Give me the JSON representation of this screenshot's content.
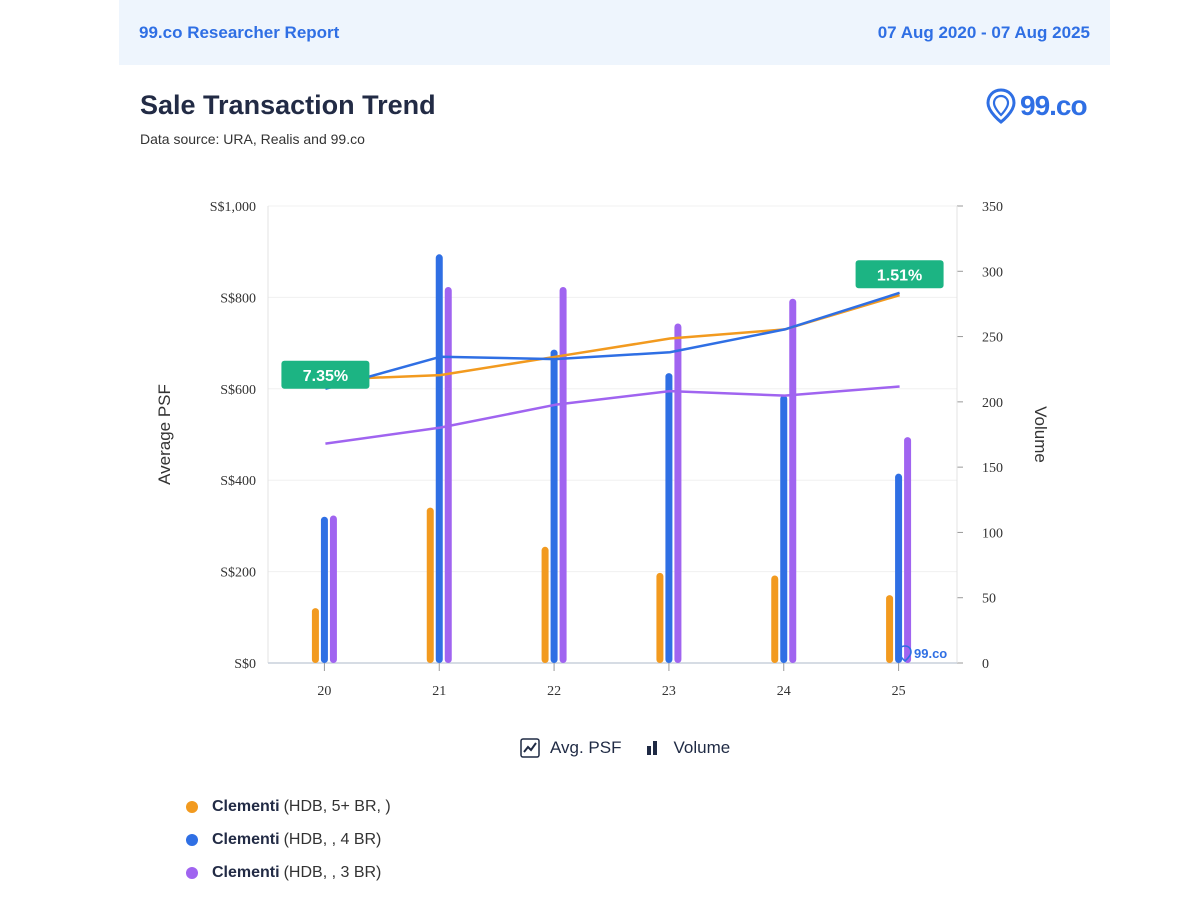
{
  "header": {
    "report_name": "99.co Researcher Report",
    "date_range": "07 Aug 2020 - 07 Aug 2025"
  },
  "title": "Sale Transaction Trend",
  "subtitle": "Data source: URA, Realis and 99.co",
  "logo": {
    "text": "99.co",
    "color": "#2f6fe4"
  },
  "watermark": {
    "text": "99.co"
  },
  "toggles": {
    "psf_label": "Avg. PSF",
    "volume_label": "Volume"
  },
  "chart_data": {
    "type": "bar+line",
    "categories": [
      "20",
      "21",
      "22",
      "23",
      "24",
      "25"
    ],
    "y_left": {
      "label": "Average PSF",
      "ticks": [
        "S$0",
        "S$200",
        "S$400",
        "S$600",
        "S$800",
        "S$1,000"
      ],
      "range": [
        0,
        1000
      ]
    },
    "y_right": {
      "label": "Volume",
      "ticks": [
        "0",
        "50",
        "100",
        "150",
        "200",
        "250",
        "300",
        "350"
      ],
      "range": [
        0,
        350
      ]
    },
    "series": [
      {
        "name": "Clementi",
        "detail": "(HDB, 5+ BR, )",
        "color": "#f29a1f",
        "volume": [
          42,
          119,
          89,
          69,
          67,
          52
        ],
        "avg_psf": [
          620,
          630,
          670,
          710,
          730,
          805
        ]
      },
      {
        "name": "Clementi",
        "detail": "(HDB, , 4 BR)",
        "color": "#2f6fe4",
        "volume": [
          112,
          313,
          240,
          222,
          205,
          145
        ],
        "avg_psf": [
          600,
          670,
          665,
          680,
          730,
          810
        ]
      },
      {
        "name": "Clementi",
        "detail": "(HDB, , 3 BR)",
        "color": "#a064f0",
        "volume": [
          113,
          288,
          288,
          260,
          279,
          173
        ],
        "avg_psf": [
          480,
          515,
          565,
          595,
          585,
          605
        ]
      }
    ],
    "annotations": [
      {
        "text": "7.35%",
        "category": "20",
        "value_psf": 600,
        "color": "#1cb483"
      },
      {
        "text": "1.51%",
        "category": "25",
        "value_psf": 820,
        "color": "#1cb483"
      }
    ]
  }
}
